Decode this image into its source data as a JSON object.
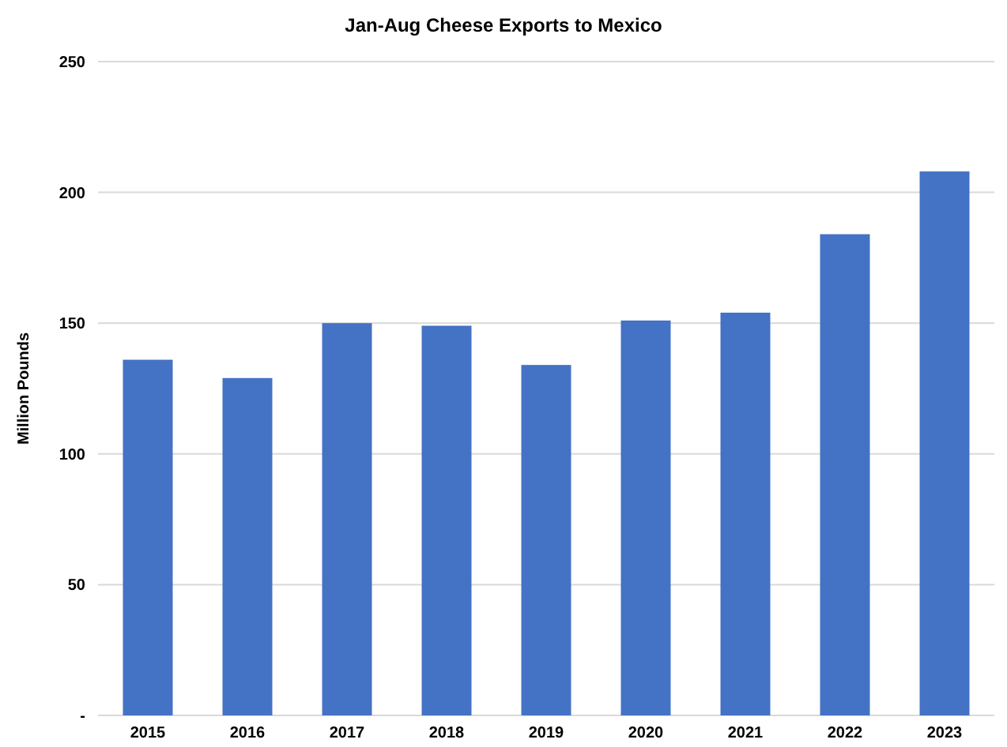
{
  "chart_data": {
    "type": "bar",
    "title": "Jan-Aug Cheese Exports to Mexico",
    "ylabel": "Million Pounds",
    "categories": [
      "2015",
      "2016",
      "2017",
      "2018",
      "2019",
      "2020",
      "2021",
      "2022",
      "2023"
    ],
    "values": [
      136,
      129,
      150,
      149,
      134,
      151,
      154,
      184,
      208
    ],
    "color": "#4472c4",
    "ylim": [
      0,
      250
    ],
    "yticks": [
      {
        "value": 0,
        "label": "-"
      },
      50,
      100,
      150,
      200,
      250
    ],
    "grid": "y"
  }
}
